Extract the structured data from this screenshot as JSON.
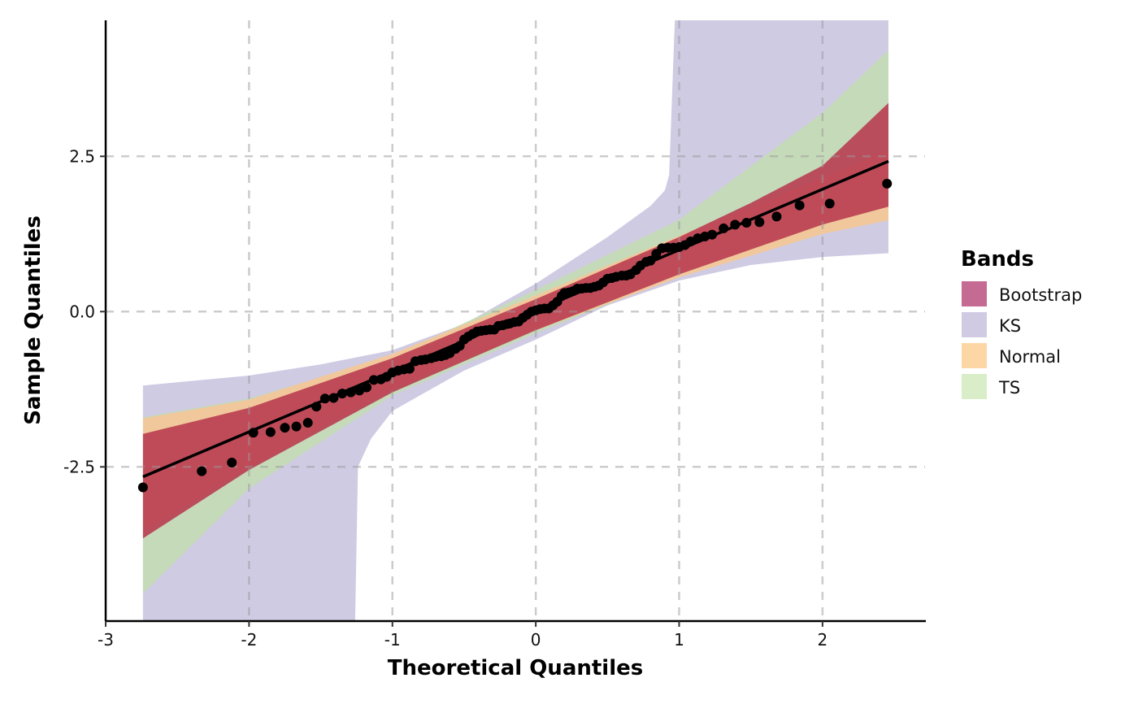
{
  "chart_data": {
    "type": "scatter",
    "subtype": "qq-plot-with-confidence-bands",
    "title": "",
    "xlabel": "Theoretical Quantiles",
    "ylabel": "Sample Quantiles",
    "xlim": [
      -3.0,
      2.715
    ],
    "ylim": [
      -4.97,
      4.69
    ],
    "xticks": [
      -3,
      -2,
      -1,
      0,
      1,
      2
    ],
    "xtick_labels": [
      "-3",
      "-2",
      "-1",
      "0",
      "1",
      "2"
    ],
    "yticks": [
      -2.5,
      0,
      2.5
    ],
    "ytick_labels": [
      "-2.5",
      "0.0",
      "2.5"
    ],
    "grid": true,
    "legend": {
      "title": "Bands",
      "placement": "right",
      "entries": [
        {
          "name": "Bootstrap",
          "color": "#c46a93"
        },
        {
          "name": "KS",
          "color": "#d0cbe3"
        },
        {
          "name": "Normal",
          "color": "#fdd6a6"
        },
        {
          "name": "TS",
          "color": "#d8edc8"
        }
      ]
    },
    "reference_line": {
      "x": [
        -2.74,
        2.46
      ],
      "y": [
        -2.66,
        2.42
      ]
    },
    "bands": [
      {
        "name": "KS",
        "color": "#cfcbe3",
        "opacity": 1,
        "upper": {
          "x": [
            -2.74,
            -2.0,
            -1.5,
            -1.0,
            -0.5,
            0.0,
            0.5,
            0.8,
            0.9,
            0.93,
            0.97,
            2.46
          ],
          "y": [
            -1.19,
            -1.03,
            -0.85,
            -0.62,
            -0.2,
            0.45,
            1.2,
            1.7,
            1.95,
            2.2,
            4.69,
            4.69
          ]
        },
        "lower": {
          "x": [
            -2.74,
            -1.26,
            -1.24,
            -1.15,
            -1.0,
            -0.5,
            0.0,
            0.5,
            1.0,
            1.5,
            2.0,
            2.46
          ],
          "y": [
            -4.97,
            -4.97,
            -2.5,
            -2.05,
            -1.6,
            -0.95,
            -0.45,
            0.1,
            0.5,
            0.75,
            0.88,
            0.94
          ]
        }
      },
      {
        "name": "TS",
        "color": "#c3dcb4",
        "opacity": 0.9,
        "upper": {
          "x": [
            -2.74,
            -2.0,
            -1.0,
            0.0,
            1.0,
            2.0,
            2.46
          ],
          "y": [
            -1.7,
            -1.4,
            -0.72,
            0.35,
            1.48,
            3.2,
            4.21
          ]
        },
        "lower": {
          "x": [
            -2.74,
            -2.0,
            -1.0,
            0.0,
            1.0,
            2.0,
            2.46
          ],
          "y": [
            -4.54,
            -2.85,
            -1.35,
            -0.35,
            0.58,
            1.25,
            1.5
          ]
        }
      },
      {
        "name": "Normal",
        "color": "#f3c79a",
        "opacity": 0.95,
        "upper": {
          "x": [
            -2.74,
            -2.0,
            -1.0,
            0.0,
            1.0,
            2.0,
            2.46
          ],
          "y": [
            -1.72,
            -1.42,
            -0.68,
            0.26,
            1.22,
            2.15,
            2.6
          ]
        },
        "lower": {
          "x": [
            -2.74,
            -2.0,
            -1.0,
            0.0,
            1.0,
            2.0,
            2.46
          ],
          "y": [
            -3.55,
            -2.5,
            -1.25,
            -0.3,
            0.55,
            1.25,
            1.47
          ]
        }
      },
      {
        "name": "Bootstrap",
        "color": "#b8394f",
        "opacity": 0.88,
        "upper": {
          "x": [
            -2.74,
            -2.0,
            -1.0,
            0.0,
            1.0,
            1.5,
            2.0,
            2.46
          ],
          "y": [
            -1.97,
            -1.55,
            -0.75,
            0.2,
            1.2,
            1.75,
            2.35,
            3.36
          ]
        },
        "lower": {
          "x": [
            -2.74,
            -2.0,
            -1.0,
            0.0,
            1.0,
            2.0,
            2.46
          ],
          "y": [
            -3.65,
            -2.55,
            -1.3,
            -0.3,
            0.6,
            1.4,
            1.69
          ]
        }
      }
    ],
    "points": {
      "x": [
        -2.74,
        -2.33,
        -2.12,
        -1.97,
        -1.85,
        -1.75,
        -1.67,
        -1.59,
        -1.53,
        -1.47,
        -1.41,
        -1.35,
        -1.29,
        -1.23,
        -1.18,
        -1.13,
        -1.08,
        -1.04,
        -1.0,
        -0.96,
        -0.92,
        -0.88,
        -0.84,
        -0.8,
        -0.77,
        -0.73,
        -0.7,
        -0.66,
        -0.63,
        -0.6,
        -0.56,
        -0.53,
        -0.5,
        -0.47,
        -0.44,
        -0.41,
        -0.38,
        -0.35,
        -0.32,
        -0.29,
        -0.26,
        -0.23,
        -0.2,
        -0.18,
        -0.15,
        -0.12,
        -0.09,
        -0.06,
        -0.03,
        0.0,
        0.03,
        0.06,
        0.09,
        0.12,
        0.15,
        0.18,
        0.2,
        0.23,
        0.26,
        0.29,
        0.32,
        0.35,
        0.38,
        0.41,
        0.44,
        0.47,
        0.5,
        0.53,
        0.56,
        0.6,
        0.63,
        0.66,
        0.7,
        0.73,
        0.77,
        0.8,
        0.84,
        0.88,
        0.92,
        0.96,
        1.0,
        1.04,
        1.08,
        1.13,
        1.18,
        1.23,
        1.31,
        1.39,
        1.47,
        1.56,
        1.68,
        1.84,
        2.05,
        2.45
      ],
      "y": [
        -2.83,
        -2.57,
        -2.43,
        -1.95,
        -1.94,
        -1.87,
        -1.85,
        -1.79,
        -1.53,
        -1.4,
        -1.39,
        -1.32,
        -1.3,
        -1.27,
        -1.22,
        -1.1,
        -1.09,
        -1.05,
        -0.98,
        -0.95,
        -0.93,
        -0.92,
        -0.8,
        -0.78,
        -0.77,
        -0.75,
        -0.73,
        -0.72,
        -0.7,
        -0.67,
        -0.6,
        -0.55,
        -0.45,
        -0.4,
        -0.36,
        -0.32,
        -0.31,
        -0.3,
        -0.29,
        -0.29,
        -0.23,
        -0.22,
        -0.2,
        -0.19,
        -0.17,
        -0.16,
        -0.1,
        -0.05,
        0.0,
        0.02,
        0.04,
        0.05,
        0.05,
        0.1,
        0.16,
        0.25,
        0.3,
        0.31,
        0.33,
        0.37,
        0.37,
        0.38,
        0.38,
        0.4,
        0.42,
        0.47,
        0.53,
        0.54,
        0.56,
        0.58,
        0.58,
        0.6,
        0.67,
        0.74,
        0.8,
        0.82,
        0.93,
        1.02,
        1.03,
        1.03,
        1.04,
        1.07,
        1.13,
        1.18,
        1.21,
        1.24,
        1.34,
        1.4,
        1.43,
        1.44,
        1.53,
        1.71,
        1.74,
        2.06
      ]
    }
  }
}
